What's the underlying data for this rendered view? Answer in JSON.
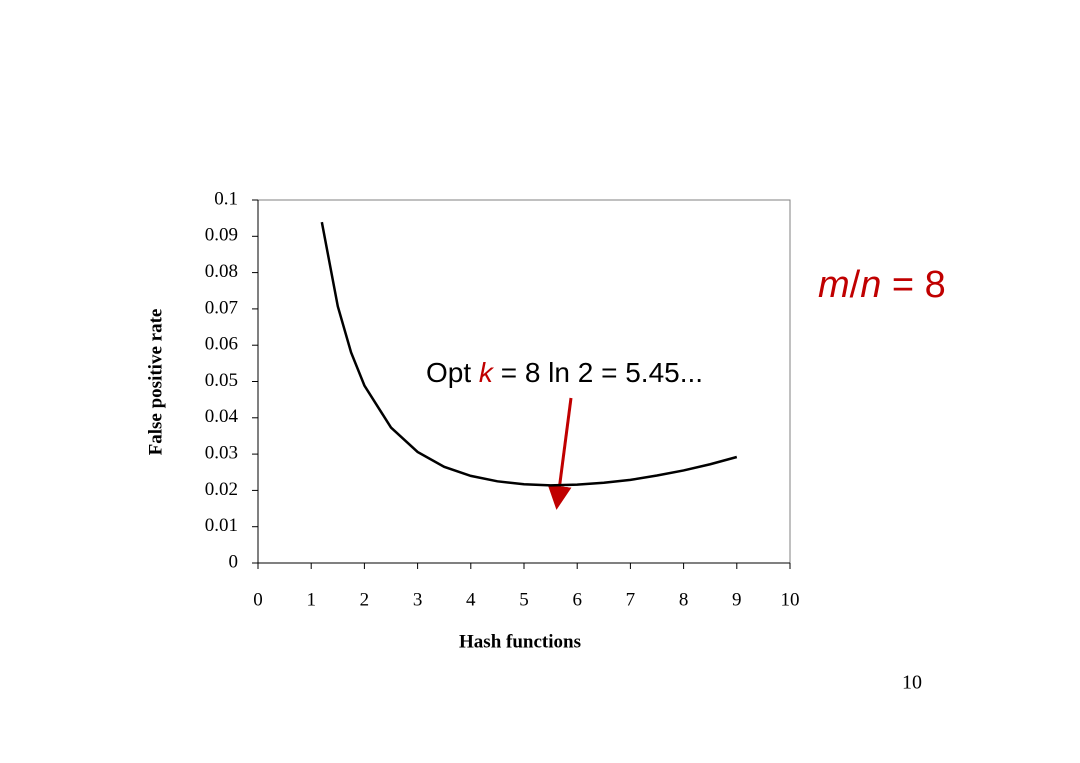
{
  "chart_data": {
    "type": "line",
    "x_label": "Hash functions",
    "y_label": "False positive rate",
    "x": [
      1.2,
      1.5,
      1.75,
      2,
      2.5,
      3,
      3.5,
      4,
      4.5,
      5,
      5.5,
      6,
      6.5,
      7,
      7.5,
      8,
      8.5,
      9
    ],
    "values": [
      0.0939,
      0.0707,
      0.058,
      0.0489,
      0.0373,
      0.0306,
      0.0265,
      0.024,
      0.0225,
      0.0217,
      0.0214,
      0.0216,
      0.0221,
      0.0229,
      0.0241,
      0.0255,
      0.0272,
      0.0292
    ],
    "color": "#000000",
    "xlim": [
      0,
      10
    ],
    "ylim": [
      0,
      0.1
    ],
    "xticks": [
      0,
      1,
      2,
      3,
      4,
      5,
      6,
      7,
      8,
      9,
      10
    ],
    "yticks": [
      0,
      0.01,
      0.02,
      0.03,
      0.04,
      0.05,
      0.06,
      0.07,
      0.08,
      0.09,
      0.1
    ],
    "annotation_parts": [
      "Opt ",
      "k",
      " = 8 ln 2 = 5.45..."
    ]
  },
  "side_note_parts": [
    "m",
    "/",
    "n",
    " = 8"
  ],
  "page_number": "10"
}
